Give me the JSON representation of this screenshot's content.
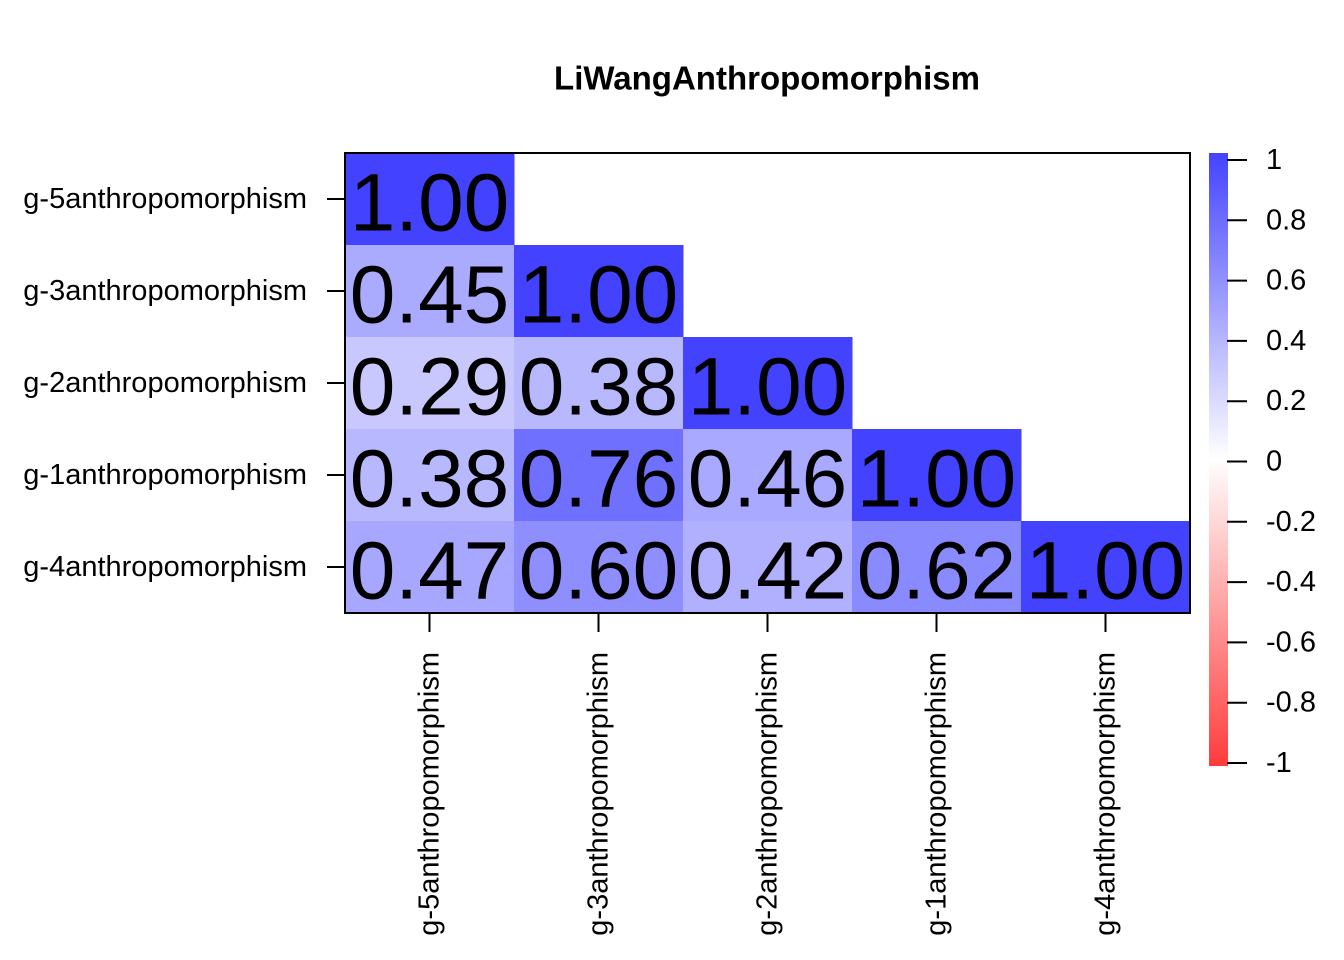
{
  "chart_data": {
    "type": "heatmap",
    "title": "LiWangAnthropomorphism",
    "rows": [
      "g-5anthropomorphism",
      "g-3anthropomorphism",
      "g-2anthropomorphism",
      "g-1anthropomorphism",
      "g-4anthropomorphism"
    ],
    "columns": [
      "g-5anthropomorphism",
      "g-3anthropomorphism",
      "g-2anthropomorphism",
      "g-1anthropomorphism",
      "g-4anthropomorphism"
    ],
    "values": [
      [
        1,
        null,
        null,
        null,
        null
      ],
      [
        0.45,
        1,
        null,
        null,
        null
      ],
      [
        0.29,
        0.38,
        1,
        null,
        null
      ],
      [
        0.38,
        0.76,
        0.46,
        1,
        null
      ],
      [
        0.47,
        0.6,
        0.42,
        0.62,
        1
      ]
    ],
    "value_labels": [
      [
        "1.00",
        null,
        null,
        null,
        null
      ],
      [
        "0.45",
        "1.00",
        null,
        null,
        null
      ],
      [
        "0.29",
        "0.38",
        "1.00",
        null,
        null
      ],
      [
        "0.38",
        "0.76",
        "0.46",
        "1.00",
        null
      ],
      [
        "0.47",
        "0.60",
        "0.42",
        "0.62",
        "1.00"
      ]
    ],
    "colors": [
      "#ff3b3b",
      "#ffffff",
      "#4343ff"
    ],
    "clim": [
      -1,
      1
    ],
    "cticks": [
      1,
      0.8,
      0.6,
      0.4,
      0.2,
      0,
      -0.2,
      -0.4,
      -0.6,
      -0.8,
      -1
    ]
  }
}
